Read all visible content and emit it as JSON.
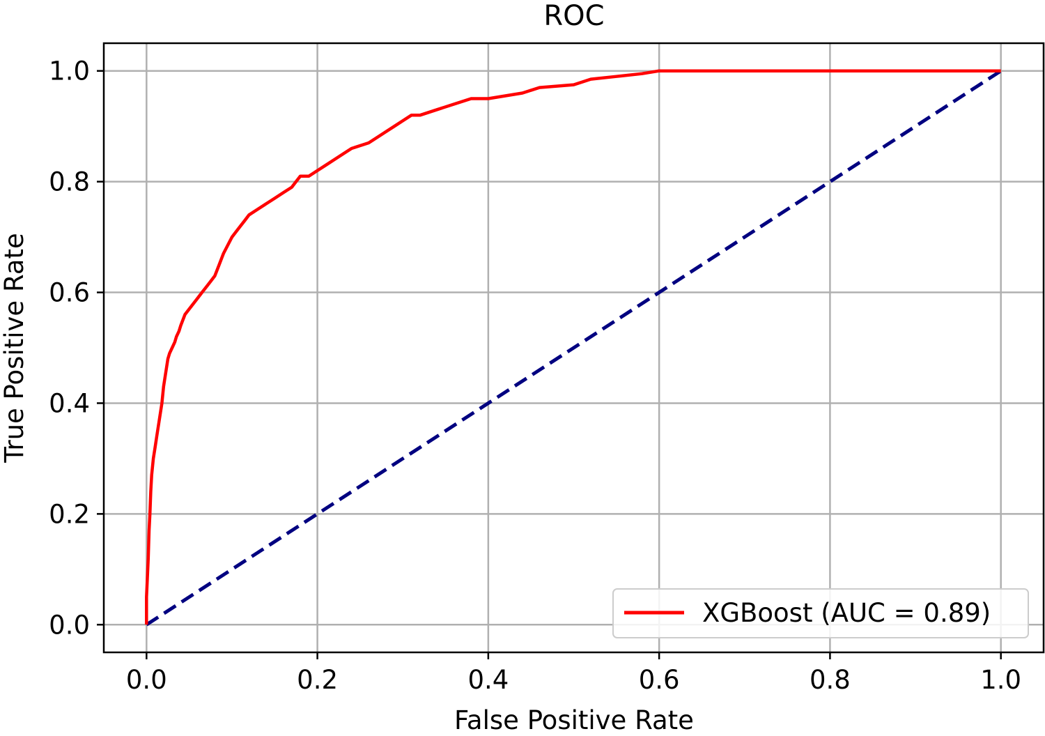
{
  "chart_data": {
    "type": "line",
    "title": "ROC",
    "xlabel": "False Positive Rate",
    "ylabel": "True Positive Rate",
    "xlim": [
      -0.05,
      1.05
    ],
    "ylim": [
      -0.05,
      1.05
    ],
    "xticks": [
      0.0,
      0.2,
      0.4,
      0.6,
      0.8,
      1.0
    ],
    "xtick_labels": [
      "0.0",
      "0.2",
      "0.4",
      "0.6",
      "0.8",
      "1.0"
    ],
    "yticks": [
      0.0,
      0.2,
      0.4,
      0.6,
      0.8,
      1.0
    ],
    "ytick_labels": [
      "0.0",
      "0.2",
      "0.4",
      "0.6",
      "0.8",
      "1.0"
    ],
    "grid": true,
    "legend": {
      "placement": "lower-right",
      "entries": [
        "XGBoost (AUC = 0.89)"
      ]
    },
    "series": [
      {
        "name": "XGBoost (AUC = 0.89)",
        "color": "#ff0000",
        "style": "solid",
        "x": [
          0.0,
          0.0,
          0.002,
          0.003,
          0.004,
          0.005,
          0.006,
          0.008,
          0.01,
          0.012,
          0.015,
          0.018,
          0.02,
          0.023,
          0.025,
          0.027,
          0.03,
          0.033,
          0.035,
          0.038,
          0.04,
          0.045,
          0.05,
          0.055,
          0.06,
          0.065,
          0.07,
          0.075,
          0.08,
          0.085,
          0.09,
          0.1,
          0.105,
          0.11,
          0.115,
          0.12,
          0.13,
          0.14,
          0.15,
          0.16,
          0.17,
          0.175,
          0.18,
          0.19,
          0.2,
          0.21,
          0.22,
          0.23,
          0.24,
          0.26,
          0.27,
          0.28,
          0.29,
          0.3,
          0.31,
          0.32,
          0.34,
          0.36,
          0.38,
          0.4,
          0.42,
          0.44,
          0.46,
          0.5,
          0.51,
          0.52,
          0.55,
          0.58,
          0.6,
          0.7,
          0.8,
          0.92,
          1.0
        ],
        "y": [
          0.0,
          0.05,
          0.12,
          0.17,
          0.2,
          0.24,
          0.27,
          0.3,
          0.32,
          0.34,
          0.37,
          0.4,
          0.43,
          0.46,
          0.48,
          0.49,
          0.5,
          0.51,
          0.52,
          0.53,
          0.54,
          0.56,
          0.57,
          0.58,
          0.59,
          0.6,
          0.61,
          0.62,
          0.63,
          0.65,
          0.67,
          0.7,
          0.71,
          0.72,
          0.73,
          0.74,
          0.75,
          0.76,
          0.77,
          0.78,
          0.79,
          0.8,
          0.81,
          0.81,
          0.82,
          0.83,
          0.84,
          0.85,
          0.86,
          0.87,
          0.88,
          0.89,
          0.9,
          0.91,
          0.92,
          0.92,
          0.93,
          0.94,
          0.95,
          0.95,
          0.955,
          0.96,
          0.97,
          0.975,
          0.98,
          0.985,
          0.99,
          0.995,
          1.0,
          1.0,
          1.0,
          1.0,
          1.0
        ]
      },
      {
        "color": "#000080",
        "style": "dashed",
        "x": [
          0.0,
          1.0
        ],
        "y": [
          0.0,
          1.0
        ]
      }
    ]
  }
}
